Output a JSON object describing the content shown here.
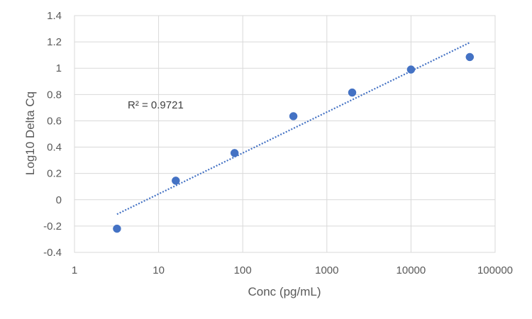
{
  "chart_data": {
    "type": "scatter",
    "xscale": "log",
    "xlim": [
      1,
      100000
    ],
    "ylim": [
      -0.4,
      1.4
    ],
    "xticks": [
      1,
      10,
      100,
      1000,
      10000,
      100000
    ],
    "xtick_labels": [
      "1",
      "10",
      "100",
      "1000",
      "10000",
      "100000"
    ],
    "yticks": [
      -0.4,
      -0.2,
      0,
      0.2,
      0.4,
      0.6,
      0.8,
      1,
      1.2,
      1.4
    ],
    "ytick_labels": [
      "-0.4",
      "-0.2",
      "0",
      "0.2",
      "0.4",
      "0.6",
      "0.8",
      "1",
      "1.2",
      "1.4"
    ],
    "xlabel": "Conc (pg/mL)",
    "ylabel": "Log10 Delta Cq",
    "grid": true,
    "legend": "none",
    "series": [
      {
        "x": [
          3.2,
          16,
          80,
          400,
          2000,
          10000,
          50000
        ],
        "y": [
          -0.22,
          0.145,
          0.355,
          0.635,
          0.815,
          0.99,
          1.085
        ],
        "color": "#4472C4"
      }
    ],
    "trendline": {
      "type": "logarithmic",
      "x_start": 3.2,
      "x_end": 50000,
      "y_start": -0.11,
      "y_end": 1.195,
      "style": "dotted",
      "color": "#4472C4"
    },
    "annotation": {
      "text": "R² = 0.9721"
    }
  }
}
